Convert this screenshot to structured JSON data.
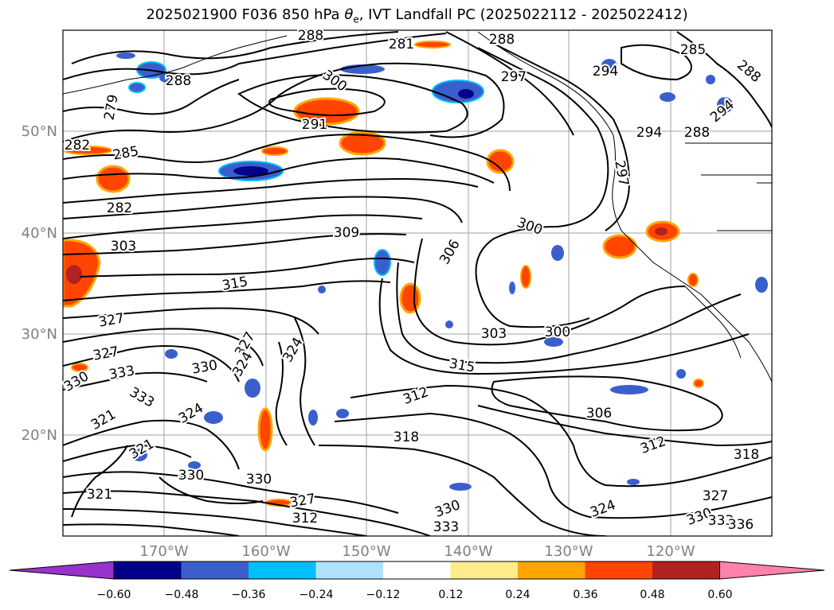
{
  "title": {
    "prefix": "2025021900 F036 850 hPa ",
    "theta_e": "θ",
    "theta_sub": "e",
    "suffix": ", IVT Landfall PC (2025022112 - 2025022412)"
  },
  "map": {
    "lat_ticks": [
      "50°N",
      "40°N",
      "30°N",
      "20°N"
    ],
    "lon_ticks": [
      "170°W",
      "160°W",
      "150°W",
      "140°W",
      "130°W",
      "120°W"
    ],
    "contour_labels": [
      "288",
      "281",
      "288",
      "285",
      "288",
      "300",
      "297",
      "288",
      "279",
      "291",
      "285",
      "282",
      "282",
      "294",
      "294",
      "288",
      "297",
      "294",
      "309",
      "300",
      "303",
      "306",
      "315",
      "327",
      "303",
      "300",
      "315",
      "324",
      "330",
      "327",
      "327",
      "333",
      "330",
      "333",
      "324",
      "312",
      "324",
      "306",
      "318",
      "312",
      "318",
      "321",
      "330",
      "327",
      "321",
      "330",
      "312",
      "333",
      "330",
      "324",
      "330",
      "333",
      "336",
      "327",
      "321"
    ]
  },
  "colorbar": {
    "colors": [
      "#9932cc",
      "#00008b",
      "#3a5fcd",
      "#00bfff",
      "#b0e2ff",
      "#ffffff",
      "#ffec8b",
      "#ffa500",
      "#ff4500",
      "#b22222",
      "#ff82ab"
    ],
    "tick_labels": [
      "−0.60",
      "−0.48",
      "−0.36",
      "−0.24",
      "−0.12",
      "0.12",
      "0.24",
      "0.36",
      "0.48",
      "0.60"
    ]
  }
}
